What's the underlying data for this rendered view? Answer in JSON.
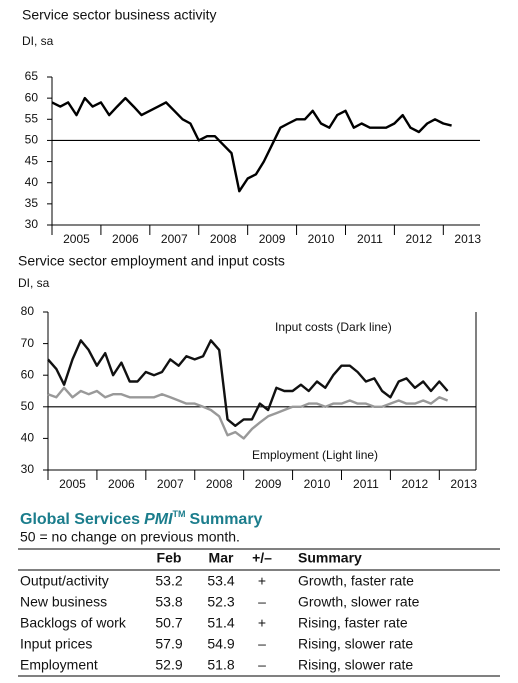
{
  "chart_data": [
    {
      "type": "line",
      "title": "Service sector business activity",
      "subtitle": "DI, sa",
      "x": [
        2005,
        2005.17,
        2005.33,
        2005.5,
        2005.67,
        2005.83,
        2006,
        2006.17,
        2006.33,
        2006.5,
        2006.67,
        2006.83,
        2007,
        2007.17,
        2007.33,
        2007.5,
        2007.67,
        2007.83,
        2008,
        2008.17,
        2008.33,
        2008.5,
        2008.67,
        2008.83,
        2009,
        2009.17,
        2009.33,
        2009.5,
        2009.67,
        2009.83,
        2010,
        2010.17,
        2010.33,
        2010.5,
        2010.67,
        2010.83,
        2011,
        2011.17,
        2011.33,
        2011.5,
        2011.67,
        2011.83,
        2012,
        2012.17,
        2012.33,
        2012.5,
        2012.67,
        2012.83,
        2013,
        2013.17
      ],
      "series": [
        {
          "color": "#000000",
          "values": [
            59,
            58,
            59,
            56,
            60,
            58,
            59,
            56,
            58,
            60,
            58,
            56,
            57,
            58,
            59,
            57,
            55,
            54,
            50,
            51,
            51,
            49,
            47,
            38,
            41,
            42,
            45,
            49,
            53,
            54,
            55,
            55,
            57,
            54,
            53,
            56,
            57,
            53,
            54,
            53,
            53,
            53,
            54,
            56,
            53,
            52,
            54,
            55,
            54,
            53.5
          ]
        }
      ],
      "xlim": [
        2005,
        2013.75
      ],
      "xticks": [
        {
          "value": 2005.5,
          "label": "2005"
        },
        {
          "value": 2006.5,
          "label": "2006"
        },
        {
          "value": 2007.5,
          "label": "2007"
        },
        {
          "value": 2008.5,
          "label": "2008"
        },
        {
          "value": 2009.5,
          "label": "2009"
        },
        {
          "value": 2010.5,
          "label": "2010"
        },
        {
          "value": 2011.5,
          "label": "2011"
        },
        {
          "value": 2012.5,
          "label": "2012"
        },
        {
          "value": 2013.5,
          "label": "2013"
        }
      ],
      "ylim": [
        30,
        65
      ],
      "yticks": [
        30,
        35,
        40,
        45,
        50,
        55,
        60,
        65
      ],
      "hline": 50
    },
    {
      "type": "line",
      "title": "Service sector employment and input costs",
      "subtitle": "DI, sa",
      "x": [
        2005,
        2005.17,
        2005.33,
        2005.5,
        2005.67,
        2005.83,
        2006,
        2006.17,
        2006.33,
        2006.5,
        2006.67,
        2006.83,
        2007,
        2007.17,
        2007.33,
        2007.5,
        2007.67,
        2007.83,
        2008,
        2008.17,
        2008.33,
        2008.5,
        2008.67,
        2008.83,
        2009,
        2009.17,
        2009.33,
        2009.5,
        2009.67,
        2009.83,
        2010,
        2010.17,
        2010.33,
        2010.5,
        2010.67,
        2010.83,
        2011,
        2011.17,
        2011.33,
        2011.5,
        2011.67,
        2011.83,
        2012,
        2012.17,
        2012.33,
        2012.5,
        2012.67,
        2012.83,
        2013,
        2013.17
      ],
      "series": [
        {
          "name": "Input costs (Dark line)",
          "color": "#111111",
          "values": [
            65,
            62,
            57,
            65,
            71,
            68,
            63,
            67,
            60,
            64,
            58,
            58,
            61,
            60,
            61,
            65,
            63,
            66,
            65,
            66,
            71,
            68,
            46,
            44,
            46,
            46,
            51,
            49,
            56,
            55,
            55,
            57,
            55,
            58,
            56,
            60,
            63,
            63,
            61,
            58,
            59,
            55,
            53,
            58,
            59,
            56,
            58,
            55,
            58,
            55
          ]
        },
        {
          "name": "Employment (Light line)",
          "color": "#999999",
          "values": [
            54,
            53,
            56,
            53,
            55,
            54,
            55,
            53,
            54,
            54,
            53,
            53,
            53,
            53,
            54,
            53,
            52,
            51,
            51,
            50,
            49,
            47,
            41,
            42,
            40,
            43,
            45,
            47,
            48,
            49,
            50,
            50,
            51,
            51,
            50,
            51,
            51,
            52,
            51,
            51,
            50,
            50,
            51,
            52,
            51,
            51,
            52,
            51,
            53,
            52
          ]
        }
      ],
      "xlim": [
        2005,
        2013.75
      ],
      "xticks": [
        {
          "value": 2005.5,
          "label": "2005"
        },
        {
          "value": 2006.5,
          "label": "2006"
        },
        {
          "value": 2007.5,
          "label": "2007"
        },
        {
          "value": 2008.5,
          "label": "2008"
        },
        {
          "value": 2009.5,
          "label": "2009"
        },
        {
          "value": 2010.5,
          "label": "2010"
        },
        {
          "value": 2011.5,
          "label": "2011"
        },
        {
          "value": 2012.5,
          "label": "2012"
        },
        {
          "value": 2013.5,
          "label": "2013"
        }
      ],
      "ylim": [
        30,
        80
      ],
      "yticks": [
        30,
        40,
        50,
        60,
        70,
        80
      ],
      "hline": 50
    }
  ],
  "table": {
    "title": [
      "Global Services",
      "PMI",
      "TM",
      "Summary"
    ],
    "subtitle": "50 = no change on previous month.",
    "header": [
      "Feb",
      "Mar",
      "+/–",
      "Summary"
    ],
    "rows": [
      [
        "Output/activity",
        53.2,
        53.4,
        "+",
        "Growth, faster rate"
      ],
      [
        "New business",
        53.8,
        52.3,
        "–",
        "Growth, slower rate"
      ],
      [
        "Backlogs of work",
        50.7,
        51.4,
        "+",
        "Rising, faster rate"
      ],
      [
        "Input prices",
        57.9,
        54.9,
        "–",
        "Rising, slower rate"
      ],
      [
        "Employment",
        52.9,
        51.8,
        "–",
        "Rising, slower rate"
      ]
    ]
  }
}
